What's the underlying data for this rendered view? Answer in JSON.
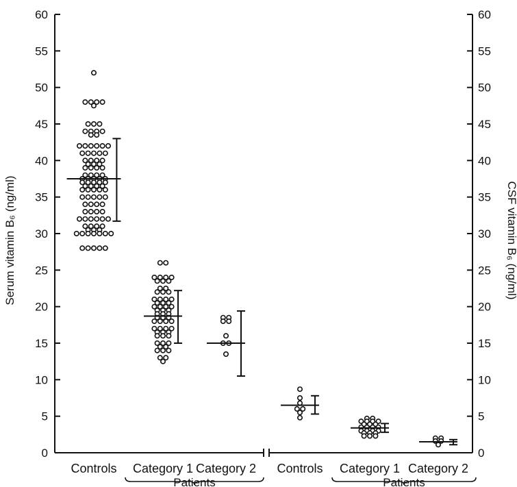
{
  "chart_data": {
    "type": "scatter",
    "y_left": {
      "label": "Serum vitamin B₆ (ng/ml)",
      "min": 0,
      "max": 60,
      "step": 5
    },
    "y_right": {
      "label": "CSF vitamin B₆ (ng/ml)",
      "min": 0,
      "max": 60,
      "step": 5
    },
    "grid": false,
    "groups": [
      {
        "label": "Controls",
        "axis": "left",
        "mean": 37.5,
        "sd_low": 31.7,
        "sd_high": 43.0,
        "rows": [
          [
            52,
            1
          ],
          [
            48,
            4
          ],
          [
            47.5,
            1
          ],
          [
            45,
            3
          ],
          [
            44,
            4
          ],
          [
            43.5,
            2
          ],
          [
            42,
            6
          ],
          [
            41,
            5
          ],
          [
            40,
            4
          ],
          [
            39.5,
            3
          ],
          [
            39,
            4
          ],
          [
            38,
            4
          ],
          [
            37.5,
            5
          ],
          [
            37,
            5
          ],
          [
            36.5,
            4
          ],
          [
            36,
            5
          ],
          [
            35,
            5
          ],
          [
            34,
            4
          ],
          [
            33,
            4
          ],
          [
            32,
            6
          ],
          [
            31,
            4
          ],
          [
            30.5,
            3
          ],
          [
            30,
            7
          ],
          [
            28,
            5
          ]
        ]
      },
      {
        "label": "Category 1",
        "axis": "left",
        "mean": 18.7,
        "sd_low": 15.0,
        "sd_high": 22.2,
        "rows": [
          [
            26,
            2
          ],
          [
            24,
            4
          ],
          [
            23.5,
            3
          ],
          [
            22.5,
            2
          ],
          [
            22,
            3
          ],
          [
            21,
            4
          ],
          [
            20.5,
            3
          ],
          [
            20,
            4
          ],
          [
            19.5,
            3
          ],
          [
            19,
            3
          ],
          [
            18.5,
            3
          ],
          [
            18,
            4
          ],
          [
            17,
            4
          ],
          [
            16.5,
            3
          ],
          [
            16,
            3
          ],
          [
            15,
            3
          ],
          [
            14.5,
            2
          ],
          [
            14,
            3
          ],
          [
            13,
            2
          ],
          [
            12.5,
            1
          ]
        ]
      },
      {
        "label": "Category 2",
        "axis": "left",
        "mean": 15.0,
        "sd_low": 10.5,
        "sd_high": 19.4,
        "rows": [
          [
            18.5,
            2
          ],
          [
            18,
            2
          ],
          [
            16,
            1
          ],
          [
            15,
            2
          ],
          [
            13.5,
            1
          ]
        ]
      },
      {
        "label": "Controls",
        "axis": "right",
        "mean": 6.5,
        "sd_low": 5.3,
        "sd_high": 7.8,
        "rows": [
          [
            8.7,
            1
          ],
          [
            7.5,
            1
          ],
          [
            6.8,
            1
          ],
          [
            6.0,
            2
          ],
          [
            5.5,
            1
          ],
          [
            4.8,
            1
          ]
        ]
      },
      {
        "label": "Category 1",
        "axis": "right",
        "mean": 3.4,
        "sd_low": 2.8,
        "sd_high": 4.0,
        "rows": [
          [
            4.7,
            2
          ],
          [
            4.3,
            4
          ],
          [
            3.9,
            3
          ],
          [
            3.5,
            4
          ],
          [
            3.0,
            4
          ],
          [
            2.7,
            3
          ],
          [
            2.3,
            3
          ]
        ]
      },
      {
        "label": "Category 2",
        "axis": "right",
        "mean": 1.5,
        "sd_low": 1.1,
        "sd_high": 1.8,
        "rows": [
          [
            2.0,
            2
          ],
          [
            1.6,
            2
          ],
          [
            1.1,
            1
          ]
        ]
      }
    ],
    "brackets": [
      {
        "label": "Patients",
        "from_group": 1,
        "to_group": 2
      },
      {
        "label": "Patients",
        "from_group": 4,
        "to_group": 5
      }
    ]
  }
}
